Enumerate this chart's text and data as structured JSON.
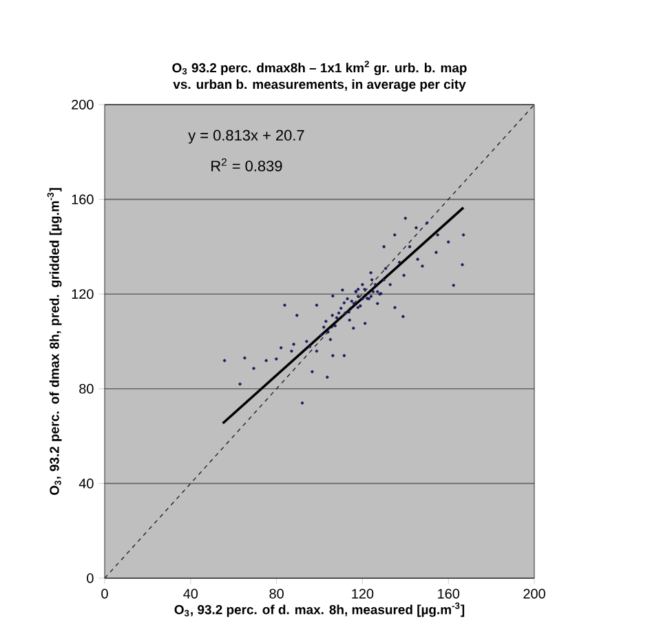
{
  "chart_data": {
    "type": "scatter",
    "title": "O$_{3}$ 93.2 perc. dmax8h – 1x1 km$^{2}$ gr. urb. b. map",
    "subtitle": "vs. urban b. measurements,  in average per city",
    "xlabel": "O$_{3}$, 93.2 perc. of d. max. 8h, measured [µg.m$^{-3}$]",
    "ylabel": "O$_{3}$, 93.2 perc. of dmax 8h, pred. gridded [µg.m$^{-3}$]",
    "annotations": [
      "y = 0.813x + 20.7",
      "R$^{2}$ = 0.839"
    ],
    "xlim": [
      0,
      200
    ],
    "ylim": [
      0,
      200
    ],
    "xticks": [
      0,
      40,
      80,
      120,
      160,
      200
    ],
    "yticks": [
      0,
      40,
      80,
      120,
      160,
      200
    ],
    "grid": "y",
    "series": [
      {
        "color": "#1c1c5c",
        "marker": "circle",
        "x": [
          104,
          108,
          112,
          115,
          118,
          119,
          121,
          123,
          126,
          128,
          102,
          110,
          114,
          117,
          120,
          124,
          127,
          130,
          106,
          116,
          55.8,
          63,
          65.2,
          69.4,
          75.2,
          79.9,
          82.1,
          83.8,
          89.5,
          98.7,
          96.6,
          103.6,
          110.7,
          123.9,
          137.2,
          145.7,
          166.5,
          162.4,
          138.9,
          111.5,
          105.1,
          88.0,
          87.0,
          95.5,
          100.8,
          107.3,
          113.7,
          117.9,
          122.2,
          128.6,
          132.9,
          139.3,
          147.9,
          154.3,
          124.4,
          130.8,
          135.1,
          115.8,
          121.2,
          103.0,
          98.7,
          106.2,
          111.5,
          106.2,
          116.9,
          140,
          145,
          150,
          135,
          130,
          142,
          155,
          160,
          167,
          92,
          94,
          118,
          120,
          125,
          127,
          113,
          109
        ],
        "values": [
          104,
          110,
          112,
          117,
          119,
          115,
          122,
          118,
          124,
          120,
          106,
          114,
          109,
          121,
          124,
          119,
          121,
          126,
          111,
          116,
          91.9,
          82,
          93.0,
          88.6,
          91.9,
          92.6,
          97.3,
          115.3,
          111.0,
          115.3,
          87.2,
          84.9,
          121.7,
          129.0,
          133.4,
          134.7,
          132.4,
          123.7,
          110.5,
          94.0,
          100.8,
          98.8,
          95.9,
          97.8,
          102.7,
          106.6,
          112.4,
          114.3,
          118.2,
          120.2,
          124.0,
          127.9,
          131.8,
          137.6,
          126.0,
          130.8,
          114.3,
          105.6,
          107.6,
          108.5,
          95.9,
          94.0,
          116.3,
          119.2,
          121.1,
          152,
          148,
          150,
          145,
          140,
          140,
          145,
          142,
          145,
          74,
          100,
          122,
          118,
          121,
          116,
          118,
          112
        ]
      },
      {
        "type": "line",
        "color": "#000000",
        "line_style": "solid",
        "marker": "none",
        "x": [
          55,
          167
        ],
        "values": [
          65.4,
          156.5
        ]
      },
      {
        "type": "line",
        "color": "#202020",
        "line_style": "dashed",
        "marker": "none",
        "x": [
          0,
          200
        ],
        "values": [
          0,
          200
        ]
      }
    ]
  }
}
